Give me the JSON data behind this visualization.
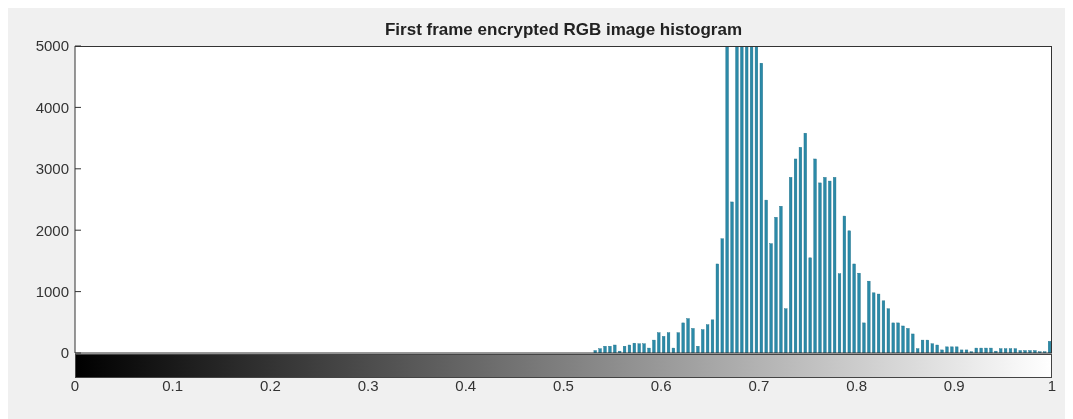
{
  "chart_data": {
    "type": "histogram",
    "title": "First frame encrypted RGB image histogram",
    "bins": [
      0.53,
      0.535,
      0.54,
      0.545,
      0.55,
      0.555,
      0.56,
      0.565,
      0.57,
      0.575,
      0.58,
      0.585,
      0.59,
      0.595,
      0.6,
      0.605,
      0.61,
      0.615,
      0.62,
      0.625,
      0.63,
      0.635,
      0.64,
      0.645,
      0.65,
      0.655,
      0.66,
      0.665,
      0.67,
      0.675,
      0.68,
      0.685,
      0.69,
      0.695,
      0.7,
      0.705,
      0.71,
      0.715,
      0.72,
      0.725,
      0.73,
      0.735,
      0.74,
      0.745,
      0.75,
      0.755,
      0.76,
      0.765,
      0.77,
      0.775,
      0.78,
      0.785,
      0.79,
      0.795,
      0.8,
      0.805,
      0.81,
      0.815,
      0.82,
      0.825,
      0.83,
      0.835,
      0.84,
      0.845,
      0.85,
      0.855,
      0.86,
      0.865,
      0.87,
      0.875,
      0.88,
      0.885,
      0.89,
      0.895,
      0.9,
      0.905,
      0.91,
      0.915,
      0.92,
      0.925,
      0.93,
      0.935,
      0.94,
      0.945,
      0.95,
      0.955,
      0.96,
      0.965,
      0.97,
      0.975,
      0.98,
      0.985,
      0.99,
      0.995,
      1.0
    ],
    "values": [
      40,
      70,
      110,
      110,
      130,
      30,
      110,
      130,
      160,
      150,
      150,
      80,
      210,
      330,
      270,
      330,
      80,
      330,
      490,
      560,
      400,
      110,
      380,
      460,
      540,
      1450,
      1860,
      5000,
      2460,
      5000,
      5000,
      5000,
      5000,
      5000,
      4720,
      2490,
      1780,
      2210,
      2390,
      720,
      2860,
      3160,
      3350,
      3580,
      1550,
      3160,
      2770,
      2860,
      2800,
      2860,
      1290,
      2230,
      1990,
      1450,
      1300,
      490,
      1170,
      980,
      960,
      850,
      720,
      490,
      490,
      440,
      400,
      310,
      70,
      210,
      210,
      150,
      130,
      50,
      100,
      100,
      100,
      50,
      50,
      20,
      80,
      80,
      80,
      80,
      30,
      70,
      70,
      70,
      70,
      40,
      40,
      40,
      40,
      20,
      20,
      190
    ],
    "color": "#2b8aa8",
    "xlim": [
      0,
      1
    ],
    "xticks": [
      0,
      0.1,
      0.2,
      0.3,
      0.4,
      0.5,
      0.6,
      0.7,
      0.8,
      0.9,
      1
    ],
    "ylim": [
      0,
      5000
    ],
    "yticks": [
      0,
      1000,
      2000,
      3000,
      4000,
      5000
    ],
    "grid": false,
    "legend": false
  }
}
